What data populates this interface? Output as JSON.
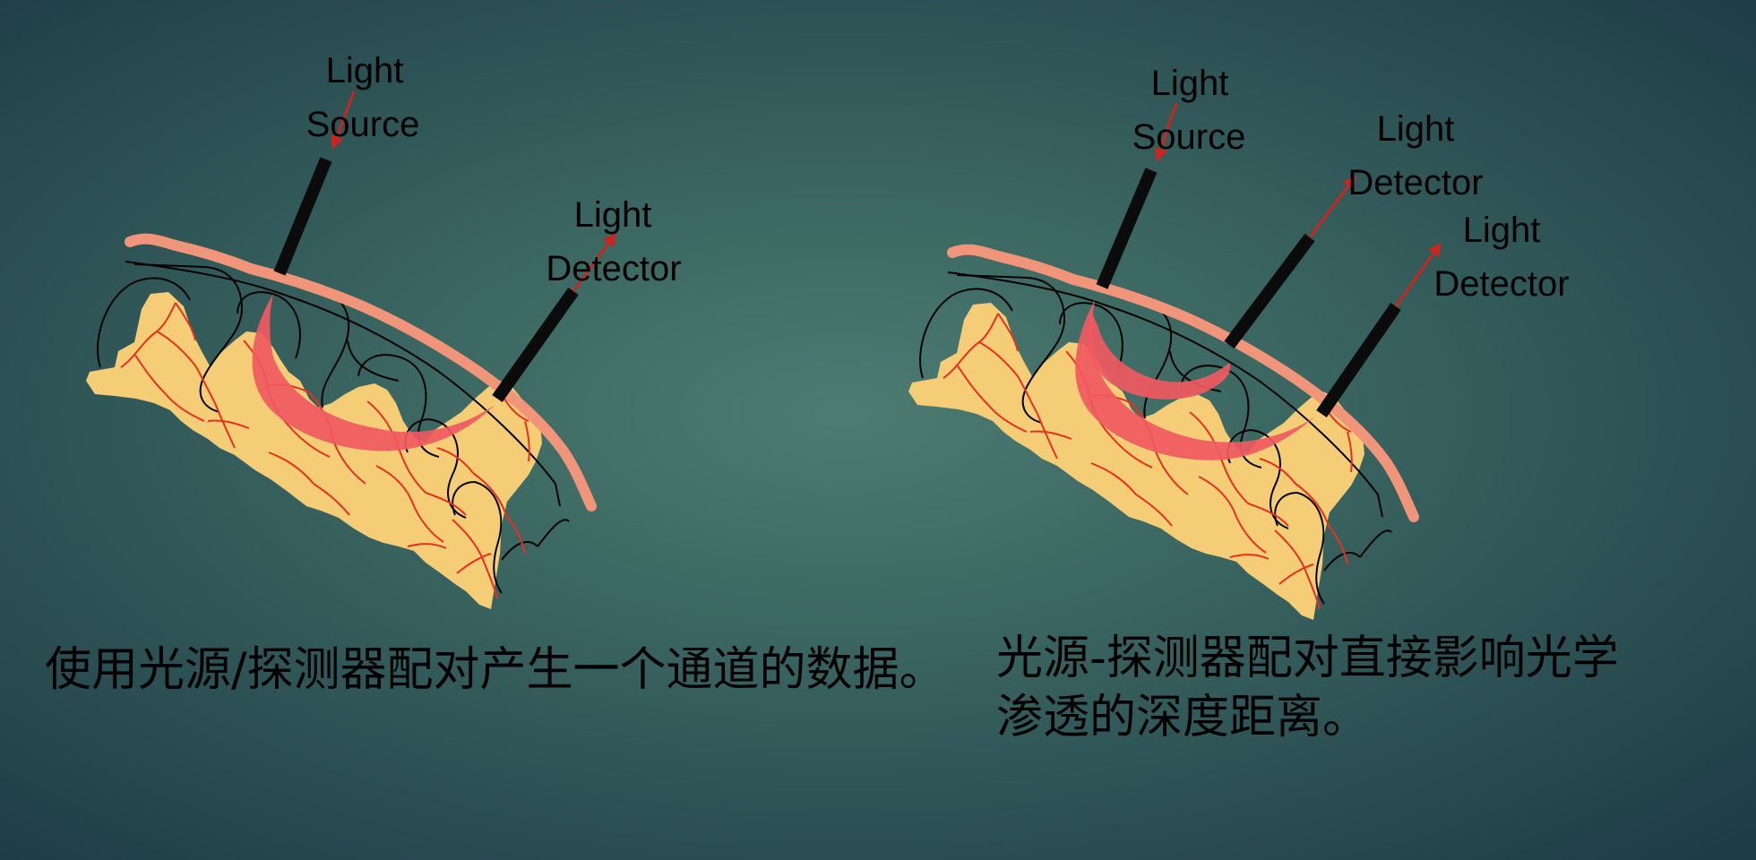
{
  "left_panel": {
    "source_label": [
      "Light",
      "Source"
    ],
    "detector_label": [
      "Light",
      "Detector"
    ]
  },
  "right_panel": {
    "source_label": [
      "Light",
      "Source"
    ],
    "detector1_label": [
      "Light",
      "Detector"
    ],
    "detector2_label": [
      "Light",
      "Detector"
    ]
  },
  "captions": {
    "left": "使用光源/探测器配对产生一个通道的数据。",
    "right_line1": "光源-探测器配对直接影响光学",
    "right_line2": "渗透的深度距离。"
  },
  "colors": {
    "background": "#3b6661",
    "cortex": "#f6cd77",
    "vessels": "#e8301f",
    "scalp": "#f0957a",
    "light_path": "#ef5a61",
    "arrow": "#c8271f",
    "probe": "#0b0b0b"
  },
  "icons": [
    "light-source-probe",
    "light-detector-probe",
    "brain-cortex",
    "scalp-layer",
    "light-path-banana"
  ]
}
